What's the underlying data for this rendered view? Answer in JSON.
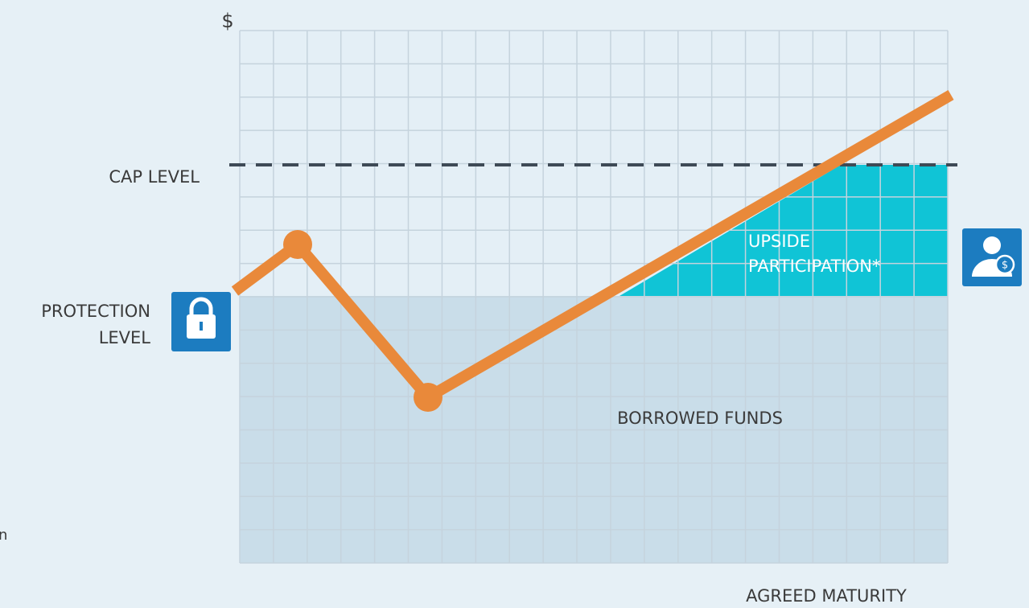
{
  "axis": {
    "y_label": "$",
    "x_label": "AGREED MATURITY"
  },
  "levels": {
    "cap": "CAP LEVEL",
    "protection": [
      "PROTECTION",
      "LEVEL"
    ]
  },
  "regions": {
    "upside": [
      "UPSIDE",
      "PARTICIPATION*"
    ],
    "borrowed": "BORROWED FUNDS"
  },
  "edge_text": "n"
}
